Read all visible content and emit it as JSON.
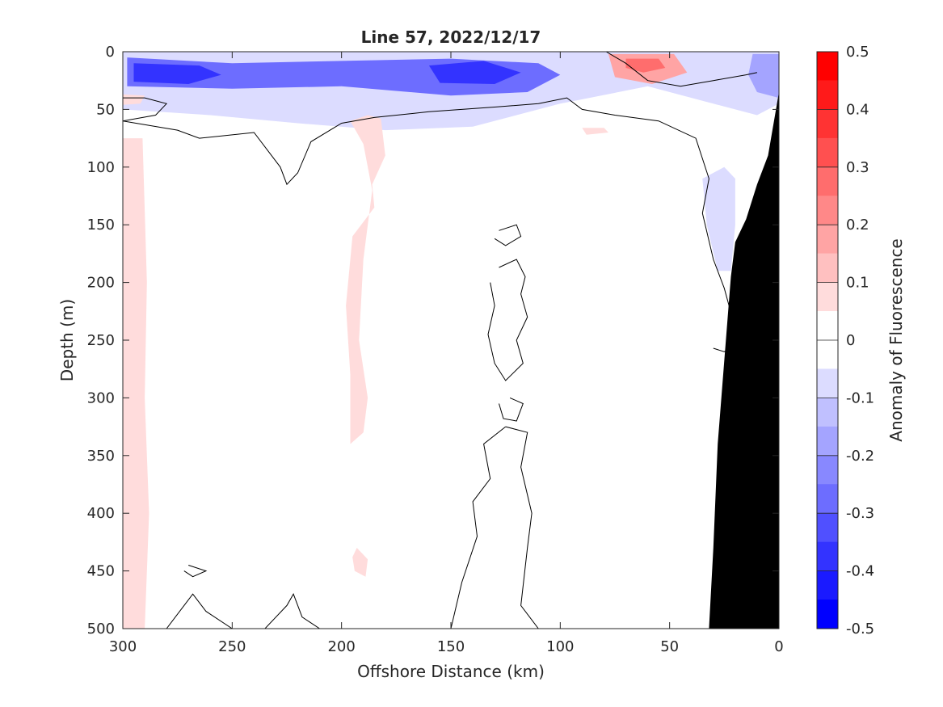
{
  "chart_data": {
    "type": "heatmap",
    "title": "Line 57, 2022/12/17",
    "xlabel": "Offshore Distance (km)",
    "ylabel": "Depth (m)",
    "colorbar_label": "Anomaly of Fluorescence",
    "xlim": [
      300,
      0
    ],
    "ylim": [
      0,
      500
    ],
    "x_reversed": true,
    "y_reversed": true,
    "x_ticks": [
      300,
      250,
      200,
      150,
      100,
      50,
      0
    ],
    "y_ticks": [
      0,
      50,
      100,
      150,
      200,
      250,
      300,
      350,
      400,
      450,
      500
    ],
    "colorbar_ticks": [
      0.5,
      0.4,
      0.3,
      0.2,
      0.1,
      0,
      -0.1,
      -0.2,
      -0.3,
      -0.4,
      -0.5
    ],
    "colorbar_ticklabels": [
      "0.5",
      "0.4",
      "0.3",
      "0.2",
      "0.1",
      "0",
      "-0.1",
      "-0.2",
      "-0.3",
      "-0.4",
      "-0.5"
    ],
    "colorbar_levels": [
      {
        "min": 0.45,
        "max": 0.5,
        "color": "#ff0000"
      },
      {
        "min": 0.4,
        "max": 0.45,
        "color": "#ff1a1a"
      },
      {
        "min": 0.35,
        "max": 0.4,
        "color": "#ff3333"
      },
      {
        "min": 0.3,
        "max": 0.35,
        "color": "#ff5050"
      },
      {
        "min": 0.25,
        "max": 0.3,
        "color": "#ff6d6d"
      },
      {
        "min": 0.2,
        "max": 0.25,
        "color": "#ff8888"
      },
      {
        "min": 0.15,
        "max": 0.2,
        "color": "#ffa4a4"
      },
      {
        "min": 0.1,
        "max": 0.15,
        "color": "#ffc0c0"
      },
      {
        "min": 0.05,
        "max": 0.1,
        "color": "#ffdcdc"
      },
      {
        "min": 0.0,
        "max": 0.05,
        "color": "#ffffff"
      },
      {
        "min": -0.05,
        "max": 0.0,
        "color": "#ffffff"
      },
      {
        "min": -0.1,
        "max": -0.05,
        "color": "#dcdcff"
      },
      {
        "min": -0.15,
        "max": -0.1,
        "color": "#c0c0ff"
      },
      {
        "min": -0.2,
        "max": -0.15,
        "color": "#a4a4ff"
      },
      {
        "min": -0.25,
        "max": -0.2,
        "color": "#8888ff"
      },
      {
        "min": -0.3,
        "max": -0.25,
        "color": "#6d6dff"
      },
      {
        "min": -0.35,
        "max": -0.3,
        "color": "#5050ff"
      },
      {
        "min": -0.4,
        "max": -0.35,
        "color": "#3333ff"
      },
      {
        "min": -0.45,
        "max": -0.4,
        "color": "#1a1aff"
      },
      {
        "min": -0.5,
        "max": -0.45,
        "color": "#0000ff"
      }
    ],
    "regions": [
      {
        "name": "surface-negative-band",
        "value": -0.1,
        "points": [
          [
            300,
            0
          ],
          [
            0,
            0
          ],
          [
            0,
            45
          ],
          [
            10,
            55
          ],
          [
            30,
            45
          ],
          [
            60,
            30
          ],
          [
            100,
            45
          ],
          [
            140,
            65
          ],
          [
            180,
            68
          ],
          [
            220,
            62
          ],
          [
            260,
            55
          ],
          [
            300,
            50
          ]
        ]
      },
      {
        "name": "surface-negative-core",
        "value": -0.3,
        "points": [
          [
            298,
            5
          ],
          [
            250,
            10
          ],
          [
            200,
            8
          ],
          [
            150,
            6
          ],
          [
            110,
            10
          ],
          [
            100,
            20
          ],
          [
            115,
            35
          ],
          [
            150,
            38
          ],
          [
            200,
            30
          ],
          [
            250,
            32
          ],
          [
            298,
            30
          ]
        ]
      },
      {
        "name": "surface-negative-strong",
        "value": -0.4,
        "points": [
          [
            295,
            10
          ],
          [
            265,
            12
          ],
          [
            255,
            20
          ],
          [
            270,
            28
          ],
          [
            295,
            26
          ]
        ]
      },
      {
        "name": "surface-negative-strong",
        "value": -0.4,
        "points": [
          [
            160,
            12
          ],
          [
            135,
            8
          ],
          [
            118,
            18
          ],
          [
            130,
            28
          ],
          [
            155,
            27
          ]
        ]
      },
      {
        "name": "surface-positive-patch",
        "value": 0.15,
        "points": [
          [
            78,
            2
          ],
          [
            48,
            2
          ],
          [
            42,
            18
          ],
          [
            58,
            28
          ],
          [
            75,
            22
          ]
        ]
      },
      {
        "name": "surface-positive-core",
        "value": 0.25,
        "points": [
          [
            70,
            6
          ],
          [
            55,
            6
          ],
          [
            52,
            14
          ],
          [
            62,
            18
          ],
          [
            70,
            14
          ]
        ]
      },
      {
        "name": "right-surface-negative",
        "value": -0.2,
        "points": [
          [
            12,
            2
          ],
          [
            0,
            2
          ],
          [
            0,
            40
          ],
          [
            10,
            35
          ],
          [
            14,
            20
          ]
        ]
      },
      {
        "name": "shelf-negative-patch",
        "value": -0.1,
        "points": [
          [
            25,
            100
          ],
          [
            35,
            110
          ],
          [
            33,
            150
          ],
          [
            28,
            190
          ],
          [
            22,
            190
          ],
          [
            20,
            150
          ],
          [
            20,
            110
          ]
        ]
      },
      {
        "name": "left-surface-positive",
        "value": 0.05,
        "points": [
          [
            300,
            37
          ],
          [
            290,
            38
          ],
          [
            292,
            45
          ],
          [
            300,
            46
          ]
        ]
      },
      {
        "name": "positive-column-left",
        "value": 0.05,
        "points": [
          [
            300,
            75
          ],
          [
            291,
            75
          ],
          [
            289,
            200
          ],
          [
            290,
            300
          ],
          [
            288,
            400
          ],
          [
            290,
            500
          ],
          [
            300,
            500
          ]
        ]
      },
      {
        "name": "positive-column-mid",
        "value": 0.05,
        "points": [
          [
            188,
            55
          ],
          [
            182,
            58
          ],
          [
            180,
            90
          ],
          [
            186,
            115
          ],
          [
            185,
            135
          ],
          [
            195,
            160
          ],
          [
            198,
            220
          ],
          [
            196,
            280
          ],
          [
            196,
            340
          ],
          [
            190,
            330
          ],
          [
            188,
            300
          ],
          [
            192,
            250
          ],
          [
            190,
            180
          ],
          [
            186,
            120
          ],
          [
            190,
            80
          ],
          [
            196,
            60
          ]
        ]
      },
      {
        "name": "positive-spot",
        "value": 0.05,
        "points": [
          [
            193,
            430
          ],
          [
            188,
            440
          ],
          [
            189,
            455
          ],
          [
            194,
            450
          ],
          [
            195,
            438
          ]
        ]
      },
      {
        "name": "positive-spot",
        "value": 0.05,
        "points": [
          [
            90,
            66
          ],
          [
            80,
            66
          ],
          [
            78,
            70
          ],
          [
            88,
            72
          ]
        ]
      }
    ],
    "contours_zero": [
      [
        [
          300,
          60
        ],
        [
          285,
          55
        ],
        [
          280,
          45
        ],
        [
          290,
          40
        ],
        [
          300,
          40
        ]
      ],
      [
        [
          300,
          60
        ],
        [
          275,
          68
        ],
        [
          265,
          75
        ],
        [
          240,
          70
        ],
        [
          228,
          100
        ],
        [
          225,
          115
        ],
        [
          220,
          105
        ],
        [
          214,
          78
        ],
        [
          200,
          62
        ],
        [
          185,
          57
        ],
        [
          160,
          52
        ],
        [
          130,
          48
        ],
        [
          110,
          45
        ],
        [
          97,
          40
        ],
        [
          90,
          50
        ],
        [
          75,
          55
        ],
        [
          55,
          60
        ],
        [
          38,
          75
        ],
        [
          32,
          110
        ],
        [
          35,
          140
        ],
        [
          30,
          180
        ],
        [
          25,
          205
        ],
        [
          22,
          226
        ],
        [
          16,
          230
        ]
      ],
      [
        [
          79,
          0
        ],
        [
          70,
          10
        ],
        [
          60,
          25
        ],
        [
          45,
          30
        ],
        [
          30,
          25
        ],
        [
          15,
          20
        ],
        [
          10,
          18
        ]
      ],
      [
        [
          20,
          255
        ],
        [
          25,
          260
        ],
        [
          30,
          257
        ]
      ],
      [
        [
          128,
          155
        ],
        [
          120,
          150
        ],
        [
          118,
          160
        ],
        [
          125,
          168
        ],
        [
          130,
          162
        ]
      ],
      [
        [
          128,
          187
        ],
        [
          120,
          180
        ],
        [
          116,
          195
        ],
        [
          118,
          210
        ],
        [
          115,
          230
        ],
        [
          120,
          250
        ],
        [
          117,
          270
        ],
        [
          125,
          285
        ],
        [
          130,
          270
        ],
        [
          133,
          245
        ],
        [
          130,
          220
        ],
        [
          132,
          200
        ]
      ],
      [
        [
          123,
          300
        ],
        [
          117,
          305
        ],
        [
          120,
          320
        ],
        [
          126,
          318
        ],
        [
          128,
          305
        ]
      ],
      [
        [
          125,
          325
        ],
        [
          115,
          330
        ],
        [
          118,
          360
        ],
        [
          113,
          400
        ],
        [
          115,
          430
        ],
        [
          118,
          480
        ],
        [
          110,
          500
        ]
      ],
      [
        [
          125,
          325
        ],
        [
          135,
          340
        ],
        [
          132,
          370
        ],
        [
          140,
          390
        ],
        [
          138,
          420
        ],
        [
          145,
          460
        ],
        [
          150,
          500
        ]
      ],
      [
        [
          270,
          445
        ],
        [
          262,
          450
        ],
        [
          268,
          455
        ],
        [
          272,
          450
        ]
      ],
      [
        [
          280,
          500
        ],
        [
          272,
          480
        ],
        [
          268,
          470
        ],
        [
          262,
          485
        ],
        [
          250,
          500
        ]
      ],
      [
        [
          235,
          500
        ],
        [
          225,
          480
        ],
        [
          222,
          470
        ],
        [
          218,
          490
        ],
        [
          210,
          500
        ]
      ]
    ],
    "bathymetry_polygon": [
      [
        0,
        35
      ],
      [
        5,
        90
      ],
      [
        10,
        115
      ],
      [
        15,
        145
      ],
      [
        20,
        165
      ],
      [
        22,
        195
      ],
      [
        28,
        340
      ],
      [
        30,
        430
      ],
      [
        32,
        500
      ],
      [
        0,
        500
      ]
    ]
  }
}
